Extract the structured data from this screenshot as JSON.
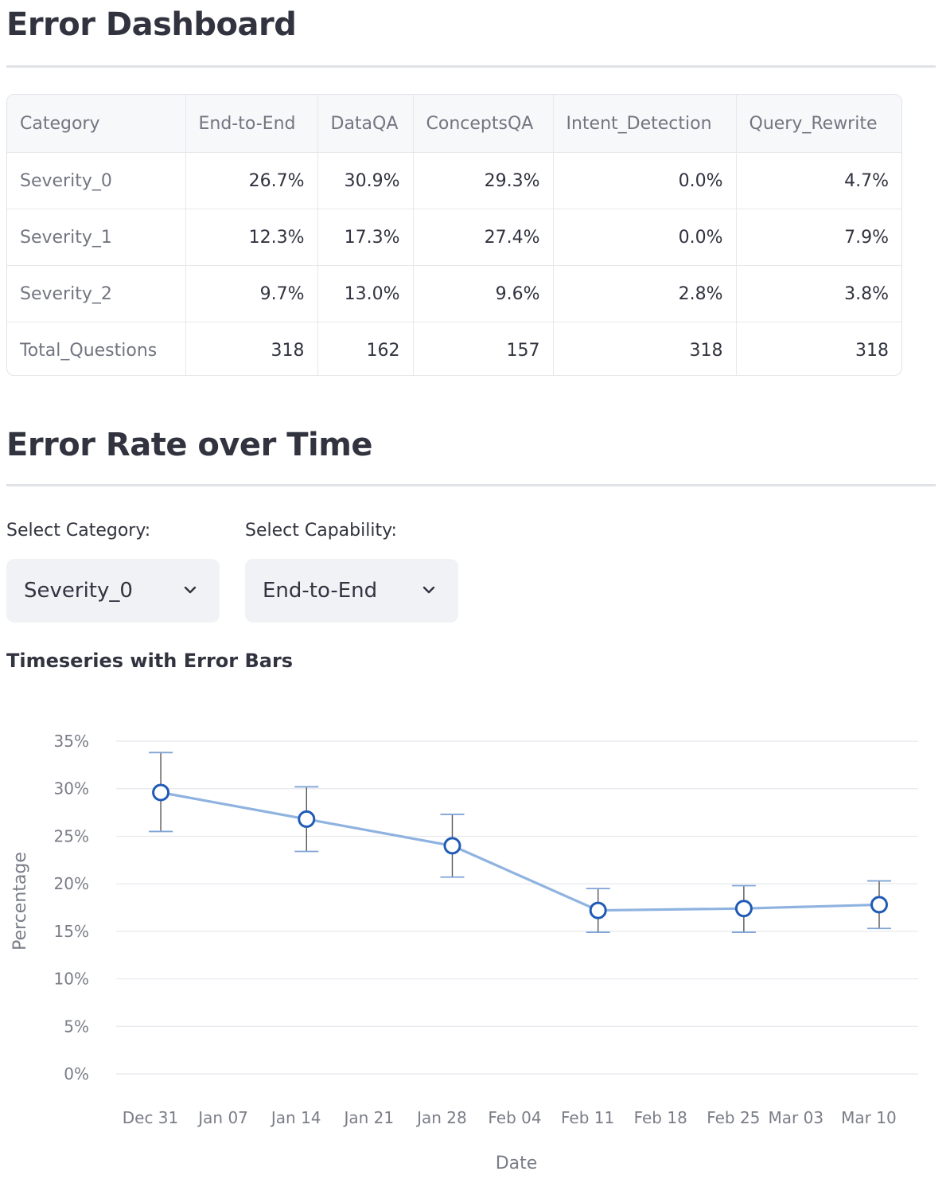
{
  "dashboard": {
    "title": "Error Dashboard",
    "table": {
      "columns": [
        "Category",
        "End-to-End",
        "DataQA",
        "ConceptsQA",
        "Intent_Detection",
        "Query_Rewrite"
      ],
      "rows": [
        [
          "Severity_0",
          "26.7%",
          "30.9%",
          "29.3%",
          "0.0%",
          "4.7%"
        ],
        [
          "Severity_1",
          "12.3%",
          "17.3%",
          "27.4%",
          "0.0%",
          "7.9%"
        ],
        [
          "Severity_2",
          "9.7%",
          "13.0%",
          "9.6%",
          "2.8%",
          "3.8%"
        ],
        [
          "Total_Questions",
          "318",
          "162",
          "157",
          "318",
          "318"
        ]
      ]
    }
  },
  "error_rate": {
    "title": "Error Rate over Time",
    "category_label": "Select Category:",
    "category_value": "Severity_0",
    "capability_label": "Select Capability:",
    "capability_value": "End-to-End",
    "chart_title": "Timeseries with Error Bars"
  },
  "colors": {
    "line": "#8fb3e0",
    "marker": "#1f5bb5",
    "errorbar_cap": "#7fa4d6",
    "errorbar_stem": "#555555",
    "grid": "#e6e8ee",
    "axis_text": "#7a7d88"
  },
  "chart_data": {
    "type": "line",
    "title": "Timeseries with Error Bars",
    "xlabel": "Date",
    "ylabel": "Percentage",
    "ylim": [
      0,
      35
    ],
    "yticks": [
      "0%",
      "5%",
      "10%",
      "15%",
      "20%",
      "25%",
      "30%",
      "35%"
    ],
    "xticks": [
      "Dec 31",
      "Jan 07",
      "Jan 14",
      "Jan 21",
      "Jan 28",
      "Feb 04",
      "Feb 11",
      "Feb 18",
      "Feb 25",
      "Mar 03",
      "Mar 10"
    ],
    "grid": true,
    "series": [
      {
        "x": [
          "Jan 01",
          "Jan 15",
          "Jan 29",
          "Feb 12",
          "Feb 26",
          "Mar 11"
        ],
        "values": [
          29.6,
          26.8,
          24.0,
          17.2,
          17.4,
          17.8
        ],
        "error_low": [
          25.5,
          23.4,
          20.7,
          14.9,
          14.9,
          15.3
        ],
        "error_high": [
          33.8,
          30.2,
          27.3,
          19.5,
          19.8,
          20.3
        ]
      }
    ]
  }
}
